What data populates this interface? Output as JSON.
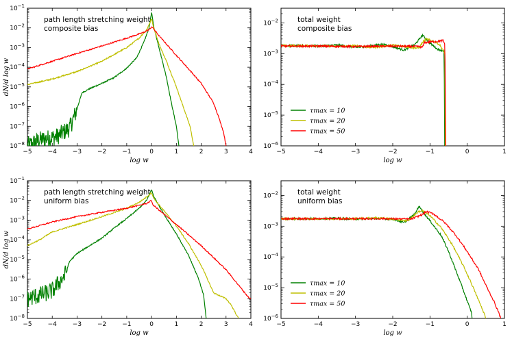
{
  "figure": {
    "series_colors": {
      "tau10": "#008000",
      "tau20": "#bfbf00",
      "tau50": "#ff0000"
    }
  },
  "chart_data": [
    {
      "type": "line",
      "panel": "top-left",
      "annotation": [
        "path length stretching weight",
        "composite bias"
      ],
      "xlabel": "log w",
      "ylabel": "dN/d log w",
      "xlim": [
        -5,
        4
      ],
      "ylim": [
        1e-08,
        0.1
      ],
      "yscale": "log",
      "xticks": [
        "-5",
        "-4",
        "-3",
        "-2",
        "-1",
        "0",
        "1",
        "2",
        "3",
        "4"
      ],
      "yticks": [
        "10-8",
        "10-7",
        "10-6",
        "10-5",
        "10-4",
        "10-3",
        "10-2",
        "10-1"
      ],
      "legend": null,
      "series": [
        {
          "color": "#008000",
          "noisy_below": -3.0,
          "points": [
            [
              -5,
              1e-08
            ],
            [
              -4.5,
              2e-08
            ],
            [
              -3.8,
              3e-08
            ],
            [
              -3.3,
              8e-08
            ],
            [
              -3.05,
              5e-07
            ],
            [
              -2.8,
              5e-06
            ],
            [
              -2.5,
              8e-06
            ],
            [
              -2.0,
              1.5e-05
            ],
            [
              -1.5,
              3e-05
            ],
            [
              -1.0,
              9e-05
            ],
            [
              -0.6,
              0.0003
            ],
            [
              -0.3,
              0.002
            ],
            [
              -0.1,
              0.01
            ],
            [
              0,
              0.06
            ],
            [
              0.1,
              0.01
            ],
            [
              0.3,
              0.001
            ],
            [
              0.6,
              3e-05
            ],
            [
              0.8,
              1.5e-06
            ],
            [
              1.0,
              1e-07
            ],
            [
              1.1,
              1e-08
            ]
          ]
        },
        {
          "color": "#bfbf00",
          "noisy_below": null,
          "points": [
            [
              -5,
              1.3e-05
            ],
            [
              -4,
              2.5e-05
            ],
            [
              -3,
              6e-05
            ],
            [
              -2,
              0.0002
            ],
            [
              -1,
              0.001
            ],
            [
              -0.5,
              0.003
            ],
            [
              -0.2,
              0.008
            ],
            [
              -0.05,
              0.02
            ],
            [
              0,
              0.03
            ],
            [
              0.05,
              0.015
            ],
            [
              0.3,
              0.0015
            ],
            [
              0.6,
              0.0002
            ],
            [
              1.0,
              1e-05
            ],
            [
              1.3,
              8e-07
            ],
            [
              1.55,
              1e-07
            ],
            [
              1.7,
              1e-08
            ]
          ]
        },
        {
          "color": "#ff0000",
          "noisy_below": null,
          "points": [
            [
              -5,
              8e-05
            ],
            [
              -4,
              0.0002
            ],
            [
              -3,
              0.0005
            ],
            [
              -2,
              0.0012
            ],
            [
              -1,
              0.003
            ],
            [
              -0.3,
              0.006
            ],
            [
              -0.05,
              0.009
            ],
            [
              0,
              0.012
            ],
            [
              0.05,
              0.01
            ],
            [
              0.3,
              0.004
            ],
            [
              1.0,
              0.0004
            ],
            [
              1.5,
              8e-05
            ],
            [
              2.0,
              1.5e-05
            ],
            [
              2.5,
              1.5e-06
            ],
            [
              2.7,
              3e-07
            ],
            [
              2.9,
              5e-08
            ],
            [
              3.0,
              1e-08
            ]
          ]
        }
      ]
    },
    {
      "type": "line",
      "panel": "top-right",
      "annotation": [
        "total weight",
        "composite bias"
      ],
      "xlabel": "log w",
      "ylabel": "",
      "xlim": [
        -5,
        1
      ],
      "ylim": [
        1e-06,
        0.03
      ],
      "yscale": "log",
      "xticks": [
        "-5",
        "-4",
        "-3",
        "-2",
        "-1",
        "0",
        "1"
      ],
      "yticks": [
        "10-6",
        "10-5",
        "10-4",
        "10-3",
        "10-2"
      ],
      "legend": {
        "placement": "lower-left",
        "entries": [
          "τmax = 10",
          "τmax = 20",
          "τmax = 50"
        ]
      },
      "series": [
        {
          "color": "#008000",
          "noisy_below": null,
          "points": [
            [
              -5,
              0.0018
            ],
            [
              -4.5,
              0.0018
            ],
            [
              -4,
              0.00175
            ],
            [
              -3.5,
              0.0019
            ],
            [
              -3,
              0.0016
            ],
            [
              -2.7,
              0.0017
            ],
            [
              -2.3,
              0.002
            ],
            [
              -2.0,
              0.0017
            ],
            [
              -1.7,
              0.0013
            ],
            [
              -1.4,
              0.002
            ],
            [
              -1.2,
              0.004
            ],
            [
              -1.0,
              0.0022
            ],
            [
              -0.8,
              0.0014
            ],
            [
              -0.7,
              0.0013
            ],
            [
              -0.62,
              0.0012
            ],
            [
              -0.605,
              1e-06
            ]
          ]
        },
        {
          "color": "#bfbf00",
          "noisy_below": null,
          "points": [
            [
              -5,
              0.0018
            ],
            [
              -4,
              0.0018
            ],
            [
              -3.5,
              0.0017
            ],
            [
              -3,
              0.0018
            ],
            [
              -2.5,
              0.0016
            ],
            [
              -2.0,
              0.0019
            ],
            [
              -1.5,
              0.0016
            ],
            [
              -1.3,
              0.0015
            ],
            [
              -1.2,
              0.0023
            ],
            [
              -1.1,
              0.003
            ],
            [
              -0.9,
              0.0025
            ],
            [
              -0.75,
              0.002
            ],
            [
              -0.65,
              0.0013
            ],
            [
              -0.6,
              0.001
            ],
            [
              -0.59,
              1e-06
            ]
          ]
        },
        {
          "color": "#ff0000",
          "noisy_below": null,
          "points": [
            [
              -5,
              0.00175
            ],
            [
              -4,
              0.00175
            ],
            [
              -3,
              0.0017
            ],
            [
              -2,
              0.00175
            ],
            [
              -1.3,
              0.0017
            ],
            [
              -1.2,
              0.0016
            ],
            [
              -1.15,
              0.0023
            ],
            [
              -1.0,
              0.0024
            ],
            [
              -0.8,
              0.0025
            ],
            [
              -0.65,
              0.0027
            ],
            [
              -0.6,
              0.002
            ],
            [
              -0.575,
              1e-06
            ]
          ]
        }
      ]
    },
    {
      "type": "line",
      "panel": "bottom-left",
      "annotation": [
        "path length stretching weight",
        "uniform bias"
      ],
      "xlabel": "log w",
      "ylabel": "dN/d log w",
      "xlim": [
        -5,
        4
      ],
      "ylim": [
        1e-08,
        0.1
      ],
      "yscale": "log",
      "xticks": [
        "-5",
        "-4",
        "-3",
        "-2",
        "-1",
        "0",
        "1",
        "2",
        "3",
        "4"
      ],
      "yticks": [
        "10-8",
        "10-7",
        "10-6",
        "10-5",
        "10-4",
        "10-3",
        "10-2",
        "10-1"
      ],
      "legend": null,
      "series": [
        {
          "color": "#008000",
          "noisy_below": -3.4,
          "points": [
            [
              -5,
              1e-07
            ],
            [
              -4.5,
              1.5e-07
            ],
            [
              -4,
              2.5e-07
            ],
            [
              -3.5,
              1.5e-06
            ],
            [
              -3.3,
              8e-06
            ],
            [
              -3.0,
              2e-05
            ],
            [
              -2.5,
              5e-05
            ],
            [
              -2.0,
              0.00012
            ],
            [
              -1.5,
              0.0004
            ],
            [
              -1.0,
              0.0012
            ],
            [
              -0.5,
              0.004
            ],
            [
              -0.2,
              0.01
            ],
            [
              0,
              0.035
            ],
            [
              0.1,
              0.015
            ],
            [
              0.5,
              0.002
            ],
            [
              1.0,
              0.0002
            ],
            [
              1.5,
              1.5e-05
            ],
            [
              1.9,
              1e-06
            ],
            [
              2.1,
              1.5e-07
            ],
            [
              2.2,
              1e-08
            ]
          ]
        },
        {
          "color": "#bfbf00",
          "noisy_below": null,
          "points": [
            [
              -5,
              5e-05
            ],
            [
              -4.5,
              0.0001
            ],
            [
              -4,
              0.00025
            ],
            [
              -3,
              0.0006
            ],
            [
              -2,
              0.0015
            ],
            [
              -1,
              0.004
            ],
            [
              -0.5,
              0.008
            ],
            [
              -0.2,
              0.015
            ],
            [
              0,
              0.025
            ],
            [
              0.1,
              0.012
            ],
            [
              0.5,
              0.003
            ],
            [
              1.0,
              0.0005
            ],
            [
              1.5,
              6e-05
            ],
            [
              2.0,
              5e-06
            ],
            [
              2.5,
              2e-07
            ],
            [
              3.0,
              1e-07
            ],
            [
              3.2,
              5e-08
            ],
            [
              3.5,
              1e-08
            ]
          ]
        },
        {
          "color": "#ff0000",
          "noisy_below": null,
          "points": [
            [
              -5,
              0.00035
            ],
            [
              -4,
              0.0008
            ],
            [
              -3,
              0.0015
            ],
            [
              -2,
              0.0025
            ],
            [
              -1,
              0.004
            ],
            [
              -0.2,
              0.007
            ],
            [
              0,
              0.01
            ],
            [
              0.05,
              0.006
            ],
            [
              0.5,
              0.002
            ],
            [
              1.0,
              0.0006
            ],
            [
              2.0,
              5e-05
            ],
            [
              3.0,
              3e-06
            ],
            [
              3.5,
              5e-07
            ],
            [
              3.9,
              1.2e-07
            ],
            [
              4.0,
              1e-07
            ]
          ]
        }
      ]
    },
    {
      "type": "line",
      "panel": "bottom-right",
      "annotation": [
        "total weight",
        "uniform bias"
      ],
      "xlabel": "log w",
      "ylabel": "",
      "xlim": [
        -5,
        1
      ],
      "ylim": [
        1e-06,
        0.03
      ],
      "yscale": "log",
      "xticks": [
        "-5",
        "-4",
        "-3",
        "-2",
        "-1",
        "0",
        "1"
      ],
      "yticks": [
        "10-6",
        "10-5",
        "10-4",
        "10-3",
        "10-2"
      ],
      "legend": {
        "placement": "lower-left",
        "entries": [
          "τmax = 10",
          "τmax = 20",
          "τmax = 50"
        ]
      },
      "series": [
        {
          "color": "#008000",
          "noisy_below": null,
          "points": [
            [
              -5,
              0.00175
            ],
            [
              -4,
              0.00175
            ],
            [
              -3.5,
              0.0018
            ],
            [
              -3,
              0.0017
            ],
            [
              -2.5,
              0.0018
            ],
            [
              -2.0,
              0.0017
            ],
            [
              -1.7,
              0.0013
            ],
            [
              -1.4,
              0.0025
            ],
            [
              -1.3,
              0.0045
            ],
            [
              -1.15,
              0.0025
            ],
            [
              -1.0,
              0.0015
            ],
            [
              -0.7,
              0.0005
            ],
            [
              -0.5,
              0.00015
            ],
            [
              -0.3,
              3.5e-05
            ],
            [
              -0.1,
              8e-06
            ],
            [
              0.05,
              2.5e-06
            ],
            [
              0.12,
              1.5e-06
            ],
            [
              0.13,
              1e-06
            ]
          ]
        },
        {
          "color": "#bfbf00",
          "noisy_below": null,
          "points": [
            [
              -5,
              0.00175
            ],
            [
              -4,
              0.00175
            ],
            [
              -3,
              0.00175
            ],
            [
              -2.4,
              0.0019
            ],
            [
              -2.0,
              0.0017
            ],
            [
              -1.6,
              0.0015
            ],
            [
              -1.3,
              0.003
            ],
            [
              -1.2,
              0.0032
            ],
            [
              -1.0,
              0.0022
            ],
            [
              -0.7,
              0.0009
            ],
            [
              -0.4,
              0.00025
            ],
            [
              -0.1,
              5e-05
            ],
            [
              0.1,
              1.5e-05
            ],
            [
              0.3,
              4e-06
            ],
            [
              0.45,
              1.5e-06
            ],
            [
              0.5,
              1e-06
            ]
          ]
        },
        {
          "color": "#ff0000",
          "noisy_below": null,
          "points": [
            [
              -5,
              0.00175
            ],
            [
              -4,
              0.00175
            ],
            [
              -3,
              0.00175
            ],
            [
              -2,
              0.00175
            ],
            [
              -1.5,
              0.0017
            ],
            [
              -1.2,
              0.0024
            ],
            [
              -1.1,
              0.003
            ],
            [
              -0.9,
              0.0025
            ],
            [
              -0.6,
              0.0013
            ],
            [
              -0.3,
              0.0005
            ],
            [
              0,
              0.00015
            ],
            [
              0.3,
              4e-05
            ],
            [
              0.5,
              1.2e-05
            ],
            [
              0.7,
              4e-06
            ],
            [
              0.85,
              1.5e-06
            ],
            [
              0.9,
              1e-06
            ]
          ]
        }
      ]
    }
  ]
}
